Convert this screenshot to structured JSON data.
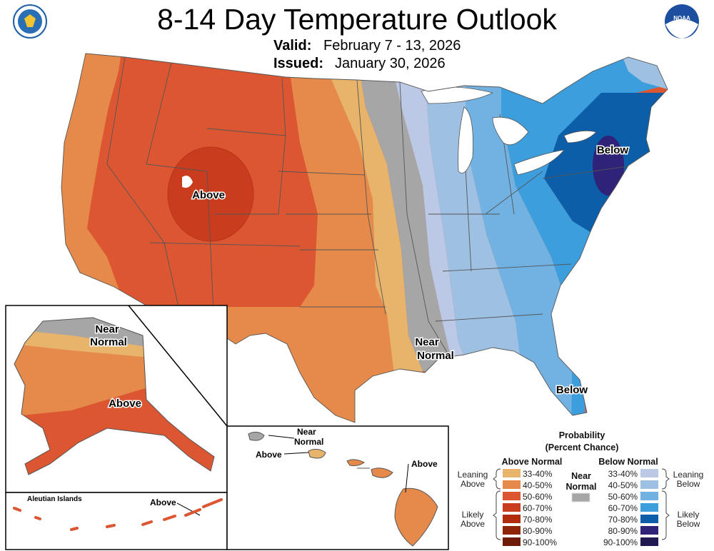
{
  "header": {
    "title": "8-14 Day Temperature Outlook",
    "valid_label": "Valid:",
    "valid_value": "February 7 - 13, 2026",
    "issued_label": "Issued:",
    "issued_value": "January 30, 2026",
    "left_logo": "US Department of Commerce seal",
    "right_logo": "NOAA",
    "right_logo_text": "NOAA"
  },
  "map_labels": {
    "conus_above": "Above",
    "conus_below_ne": "Below",
    "conus_near_1": "Near",
    "conus_near_2": "Normal",
    "conus_below_fl": "Below",
    "ak_near_1": "Near",
    "ak_near_2": "Normal",
    "ak_above": "Above",
    "aleutian_title": "Aleutian Islands",
    "aleutian_above": "Above",
    "hi_near_1": "Near",
    "hi_near_2": "Normal",
    "hi_above_west": "Above",
    "hi_above_east": "Above"
  },
  "legend": {
    "title_1": "Probability",
    "title_2": "(Percent Chance)",
    "above_header": "Above Normal",
    "below_header": "Below Normal",
    "near_1": "Near",
    "near_2": "Normal",
    "leaning_above_1": "Leaning",
    "leaning_above_2": "Above",
    "likely_above_1": "Likely",
    "likely_above_2": "Above",
    "leaning_below_1": "Leaning",
    "leaning_below_2": "Below",
    "likely_below_1": "Likely",
    "likely_below_2": "Below",
    "near_color": "#a6a6a6",
    "above": [
      {
        "range": "33-40%",
        "color": "#e8b46b"
      },
      {
        "range": "40-50%",
        "color": "#e58a4a"
      },
      {
        "range": "50-60%",
        "color": "#dc5632"
      },
      {
        "range": "60-70%",
        "color": "#c93c1e"
      },
      {
        "range": "70-80%",
        "color": "#b02c0c"
      },
      {
        "range": "80-90%",
        "color": "#8e2408"
      },
      {
        "range": "90-100%",
        "color": "#6e1c06"
      }
    ],
    "below": [
      {
        "range": "33-40%",
        "color": "#bcc9e6"
      },
      {
        "range": "40-50%",
        "color": "#9ec0e2"
      },
      {
        "range": "50-60%",
        "color": "#72b2e2"
      },
      {
        "range": "60-70%",
        "color": "#3c9edc"
      },
      {
        "range": "70-80%",
        "color": "#0b5ea7"
      },
      {
        "range": "80-90%",
        "color": "#2e2378"
      },
      {
        "range": "90-100%",
        "color": "#211a52"
      }
    ]
  }
}
